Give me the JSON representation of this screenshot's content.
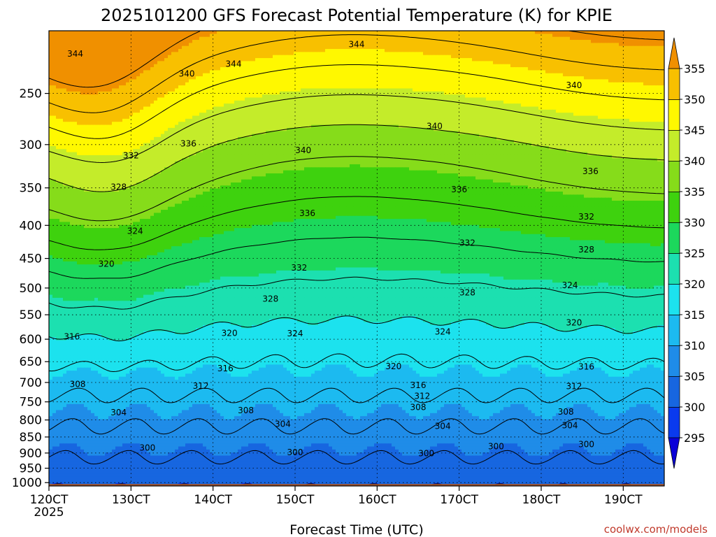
{
  "chart_data": {
    "type": "heatmap",
    "title": "2025101200 GFS Forecast Potential Temperature (K) for KPIE",
    "xlabel": "Forecast Time (UTC)",
    "ylabel": "",
    "x_ticks": [
      "120CT",
      "130CT",
      "140CT",
      "150CT",
      "160CT",
      "170CT",
      "180CT",
      "190CT"
    ],
    "x_year_label": "2025",
    "x_range_days": [
      0,
      7.5
    ],
    "y_scale": "log-pressure",
    "y_ticks": [
      250,
      300,
      350,
      400,
      450,
      500,
      550,
      600,
      650,
      700,
      750,
      800,
      850,
      900,
      950,
      1000
    ],
    "y_range": [
      1012,
      200
    ],
    "grid": true,
    "colorbar": {
      "levels": [
        295,
        300,
        305,
        310,
        315,
        320,
        325,
        330,
        335,
        340,
        345,
        350,
        355
      ],
      "labels": [
        "295",
        "300",
        "305",
        "310",
        "315",
        "320",
        "325",
        "330",
        "335",
        "340",
        "345",
        "350",
        "355"
      ],
      "colors": [
        "#0a00d8",
        "#0a3aee",
        "#1766e0",
        "#1f8ce8",
        "#1cbaf0",
        "#1ce2ee",
        "#1ce0b0",
        "#1cd85c",
        "#3ed20e",
        "#86dc1a",
        "#c4ec2a",
        "#fff800",
        "#f8c000",
        "#f09000"
      ]
    },
    "contour_interval": 4,
    "contour_labels": [
      {
        "text": "344",
        "x": 0.32,
        "p": 217
      },
      {
        "text": "344",
        "x": 2.25,
        "p": 225
      },
      {
        "text": "344",
        "x": 3.75,
        "p": 210
      },
      {
        "text": "340",
        "x": 1.68,
        "p": 233
      },
      {
        "text": "340",
        "x": 3.1,
        "p": 306
      },
      {
        "text": "340",
        "x": 4.7,
        "p": 281
      },
      {
        "text": "340",
        "x": 6.4,
        "p": 243
      },
      {
        "text": "336",
        "x": 1.7,
        "p": 299
      },
      {
        "text": "336",
        "x": 3.15,
        "p": 383
      },
      {
        "text": "336",
        "x": 5.0,
        "p": 352
      },
      {
        "text": "336",
        "x": 6.6,
        "p": 330
      },
      {
        "text": "332",
        "x": 1.0,
        "p": 312
      },
      {
        "text": "332",
        "x": 3.05,
        "p": 465
      },
      {
        "text": "332",
        "x": 5.1,
        "p": 426
      },
      {
        "text": "332",
        "x": 6.55,
        "p": 388
      },
      {
        "text": "328",
        "x": 0.85,
        "p": 349
      },
      {
        "text": "328",
        "x": 2.7,
        "p": 520
      },
      {
        "text": "328",
        "x": 5.1,
        "p": 508
      },
      {
        "text": "328",
        "x": 6.55,
        "p": 436
      },
      {
        "text": "324",
        "x": 1.05,
        "p": 408
      },
      {
        "text": "324",
        "x": 3.0,
        "p": 588
      },
      {
        "text": "324",
        "x": 4.8,
        "p": 584
      },
      {
        "text": "324",
        "x": 6.35,
        "p": 495
      },
      {
        "text": "320",
        "x": 0.7,
        "p": 459
      },
      {
        "text": "320",
        "x": 2.2,
        "p": 587
      },
      {
        "text": "320",
        "x": 4.2,
        "p": 661
      },
      {
        "text": "320",
        "x": 6.4,
        "p": 566
      },
      {
        "text": "316",
        "x": 0.28,
        "p": 595
      },
      {
        "text": "316",
        "x": 2.15,
        "p": 666
      },
      {
        "text": "316",
        "x": 4.5,
        "p": 707
      },
      {
        "text": "316",
        "x": 6.55,
        "p": 662
      },
      {
        "text": "312",
        "x": 1.85,
        "p": 709
      },
      {
        "text": "312",
        "x": 4.55,
        "p": 735
      },
      {
        "text": "312",
        "x": 6.4,
        "p": 710
      },
      {
        "text": "308",
        "x": 0.35,
        "p": 704
      },
      {
        "text": "308",
        "x": 2.4,
        "p": 773
      },
      {
        "text": "308",
        "x": 4.5,
        "p": 765
      },
      {
        "text": "308",
        "x": 6.3,
        "p": 777
      },
      {
        "text": "304",
        "x": 0.85,
        "p": 779
      },
      {
        "text": "304",
        "x": 2.85,
        "p": 812
      },
      {
        "text": "304",
        "x": 4.8,
        "p": 818
      },
      {
        "text": "304",
        "x": 6.35,
        "p": 816
      },
      {
        "text": "300",
        "x": 1.2,
        "p": 883
      },
      {
        "text": "300",
        "x": 3.0,
        "p": 898
      },
      {
        "text": "300",
        "x": 4.6,
        "p": 901
      },
      {
        "text": "300",
        "x": 5.45,
        "p": 879
      },
      {
        "text": "300",
        "x": 6.55,
        "p": 873
      }
    ],
    "ground_color": "#a0522d"
  },
  "credit": "coolwx.com/models"
}
